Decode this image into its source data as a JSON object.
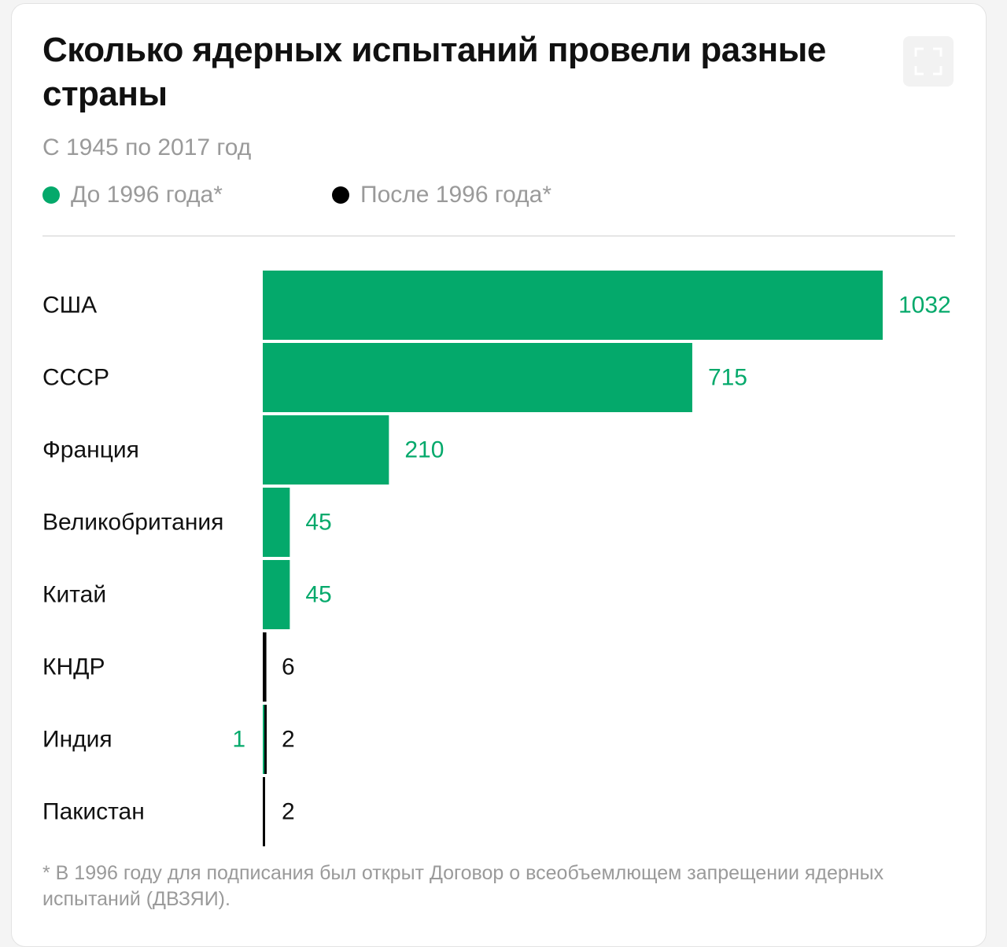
{
  "header": {
    "title": "Сколько ядерных испытаний провели разные страны",
    "subtitle": "С 1945 по 2017 год"
  },
  "legend": [
    {
      "label": "До 1996 года*",
      "color": "#04a96b"
    },
    {
      "label": "После 1996 года*",
      "color": "#000000"
    }
  ],
  "footnote": "* В 1996 году для подписания был открыт Договор о всеобъемлющем запрещении ядерных испытаний (ДВЗЯИ).",
  "chart_data": {
    "type": "bar",
    "orientation": "horizontal",
    "stacked": true,
    "categories": [
      "США",
      "СССР",
      "Франция",
      "Великобритания",
      "Китай",
      "КНДР",
      "Индия",
      "Пакистан"
    ],
    "series": [
      {
        "name": "До 1996 года*",
        "color": "#04a96b",
        "values": [
          1032,
          715,
          210,
          45,
          45,
          0,
          1,
          0
        ]
      },
      {
        "name": "После 1996 года*",
        "color": "#000000",
        "values": [
          0,
          0,
          0,
          0,
          0,
          6,
          2,
          2
        ]
      }
    ],
    "data_labels": [
      {
        "category": "США",
        "before": "1032",
        "after": ""
      },
      {
        "category": "СССР",
        "before": "715",
        "after": ""
      },
      {
        "category": "Франция",
        "before": "210",
        "after": ""
      },
      {
        "category": "Великобритания",
        "before": "45",
        "after": ""
      },
      {
        "category": "Китай",
        "before": "45",
        "after": ""
      },
      {
        "category": "КНДР",
        "before": "",
        "after": "6"
      },
      {
        "category": "Индия",
        "before": "1",
        "after": "2"
      },
      {
        "category": "Пакистан",
        "before": "",
        "after": "2"
      }
    ],
    "xlim": [
      0,
      1032
    ],
    "grid": false,
    "legend_position": "top"
  }
}
